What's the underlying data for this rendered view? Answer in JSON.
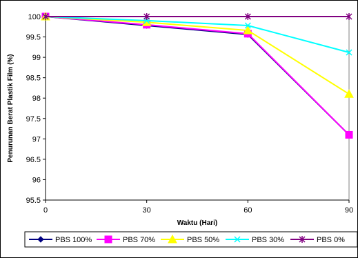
{
  "chart_data": {
    "type": "line",
    "title": "",
    "xlabel": "Waktu (Hari)",
    "ylabel": "Penurunan Berat Plastik Film (%)",
    "x": [
      0,
      30,
      60,
      90
    ],
    "x_ticks": [
      "0",
      "30",
      "60",
      "90"
    ],
    "ylim": [
      95.5,
      100
    ],
    "y_ticks": [
      "95.5",
      "96",
      "96.5",
      "97",
      "97.5",
      "98",
      "98.5",
      "99",
      "99.5",
      "100"
    ],
    "grid": false,
    "legend_position": "bottom",
    "series": [
      {
        "name": "PBS 100%",
        "values": [
          100,
          99.78,
          99.56,
          97.1
        ],
        "color": "#000080",
        "marker": "diamond"
      },
      {
        "name": "PBS 70%",
        "values": [
          100,
          99.8,
          99.58,
          97.1
        ],
        "color": "#ff00ff",
        "marker": "square"
      },
      {
        "name": "PBS 50%",
        "values": [
          100,
          99.86,
          99.66,
          98.1
        ],
        "color": "#ffff00",
        "marker": "triangle"
      },
      {
        "name": "PBS 30%",
        "values": [
          100,
          99.9,
          99.78,
          99.12
        ],
        "color": "#00ffff",
        "marker": "x"
      },
      {
        "name": "PBS 0%",
        "values": [
          100,
          100,
          100,
          100
        ],
        "color": "#800080",
        "marker": "asterisk"
      }
    ]
  }
}
